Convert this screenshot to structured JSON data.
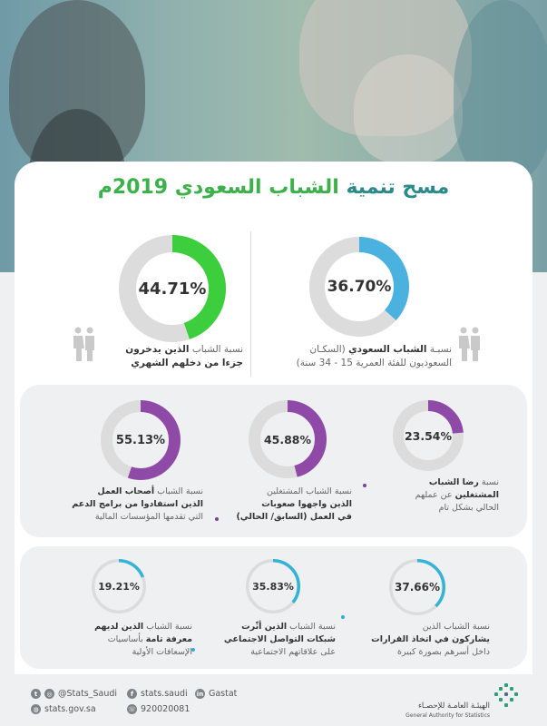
{
  "title": {
    "part1": "مسح تنمية",
    "part2": "الشباب السعودي 2019م"
  },
  "top_stats": [
    {
      "value": "36.70%",
      "percent": 36.7,
      "color": "#4bb2e0",
      "caption_line1_a": "نسبـة ",
      "caption_line1_b": "الشباب السعودي",
      "caption_line1_c": " (السكـان",
      "caption_line2": "السعوديون للفئة العمرية 15 - 34 سنة)"
    },
    {
      "value": "44.71%",
      "percent": 44.71,
      "color": "#3cce3c",
      "caption_line1_a": "نسبة الشباب ",
      "caption_line1_b": "الذين يدخرون",
      "caption_line2": "جزءا من دخلهم الشهري"
    }
  ],
  "panel1": [
    {
      "value": "23.54%",
      "percent": 23.54,
      "line1_a": "نسبة ",
      "line1_b": "رضا الشباب",
      "line2_b": "المشتغلين",
      "line2_a": " عن عملهم",
      "line3": "الحالي بشكل تام"
    },
    {
      "value": "45.88%",
      "percent": 45.88,
      "line1": "نسبة الشباب المشتغلين",
      "line2": "الذين واجهوا صعوبات",
      "line3": "في العمل (السابق/ الحالي)"
    },
    {
      "value": "55.13%",
      "percent": 55.13,
      "line1_a": "نسبة الشباب ",
      "line1_b": "أصحاب العمل",
      "line2": "الذين استفادوا من برامج الدعم",
      "line3": "التي تقدمها المؤسسات المالية"
    }
  ],
  "panel1_color": "#8e4aa6",
  "panel2": [
    {
      "value": "37.66%",
      "percent": 37.66,
      "line1": "نسبة الشباب الذين",
      "line2": "يشاركون في اتخاذ القرارات",
      "line3": "داخل أسرهم بصورة كبيرة"
    },
    {
      "value": "35.83%",
      "percent": 35.83,
      "line1_a": "نسبة الشباب ",
      "line1_b": "الذين أثّرت",
      "line2": "شبكات التواصل الاجتماعي",
      "line3": "على علاقاتهم الاجتماعية"
    },
    {
      "value": "19.21%",
      "percent": 19.21,
      "line1_a": "نسبة الشباب ",
      "line1_b": "الذين لديهم",
      "line2_b": "معرفة تامة",
      "line2_a": " بأساسيات",
      "line3": "الإسعافات الأولية"
    }
  ],
  "panel2_color": "#35b3d6",
  "ring_track_color": "#dcdcdc",
  "footer": {
    "twitter": "@Stats_Saudi",
    "facebook": "stats.saudi",
    "linkedin": "Gastat",
    "website": "stats.gov.sa",
    "phone": "920020081",
    "logo_ar": "الهيئـة العامـة للإحصـاء",
    "logo_en": "General Authority for Statistics"
  }
}
